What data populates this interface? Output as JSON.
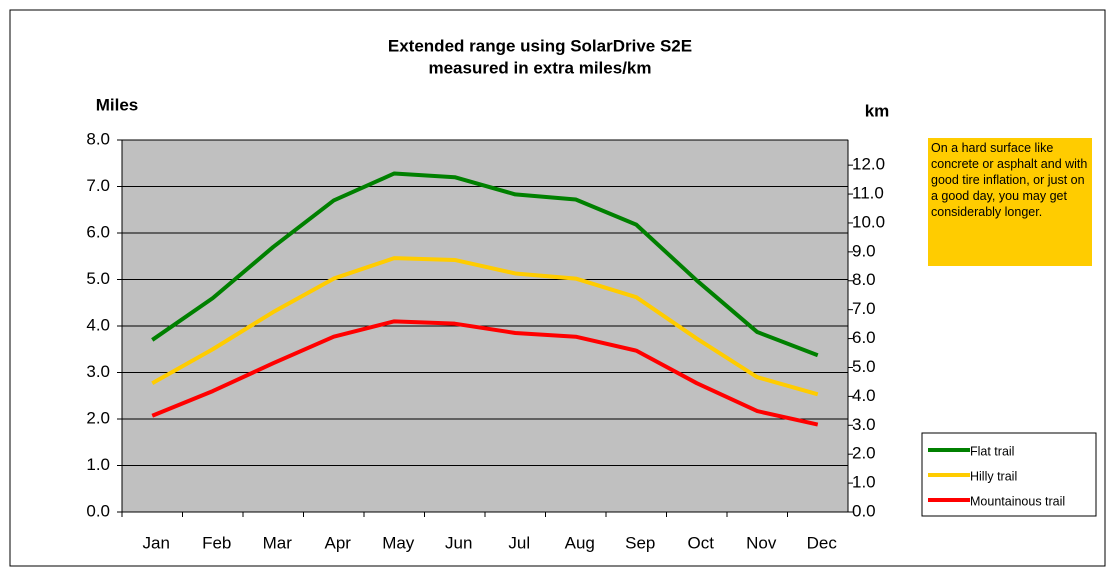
{
  "chart_data": {
    "type": "line",
    "title": [
      "Extended range using SolarDrive S2E",
      "measured in extra miles/km"
    ],
    "y_label": "Miles",
    "y2_label": "km",
    "categories": [
      "Jan",
      "Feb",
      "Mar",
      "Apr",
      "May",
      "Jun",
      "Jul",
      "Aug",
      "Sep",
      "Oct",
      "Nov",
      "Dec"
    ],
    "series": [
      {
        "name": "Flat trail",
        "color": "#008000",
        "values": [
          3.7,
          4.6,
          5.7,
          6.7,
          7.28,
          7.2,
          6.83,
          6.72,
          6.18,
          4.98,
          3.87,
          3.37
        ]
      },
      {
        "name": "Hilly trail",
        "color": "#ffcc00",
        "values": [
          2.77,
          3.5,
          4.3,
          5.02,
          5.46,
          5.42,
          5.13,
          5.02,
          4.62,
          3.73,
          2.9,
          2.53
        ]
      },
      {
        "name": "Mountainous trail",
        "color": "#ff0000",
        "values": [
          2.07,
          2.6,
          3.2,
          3.77,
          4.1,
          4.05,
          3.85,
          3.77,
          3.47,
          2.77,
          2.17,
          1.88
        ]
      }
    ],
    "ylim": [
      0,
      8
    ],
    "yticks": [
      {
        "value": 0,
        "label": "0.0"
      },
      {
        "value": 1,
        "label": "1.0"
      },
      {
        "value": 2,
        "label": "2.0"
      },
      {
        "value": 3,
        "label": "3.0"
      },
      {
        "value": 4,
        "label": "4.0"
      },
      {
        "value": 5,
        "label": "5.0"
      },
      {
        "value": 6,
        "label": "6.0"
      },
      {
        "value": 7,
        "label": "7.0"
      },
      {
        "value": 8,
        "label": "8.0"
      }
    ],
    "y2lim": [
      0,
      12.87
    ],
    "y2ticks": [
      {
        "value": 0,
        "label": "0.0"
      },
      {
        "value": 1,
        "label": "1.0"
      },
      {
        "value": 2,
        "label": "2.0"
      },
      {
        "value": 3,
        "label": "3.0"
      },
      {
        "value": 4,
        "label": "4.0"
      },
      {
        "value": 5,
        "label": "5.0"
      },
      {
        "value": 6,
        "label": "6.0"
      },
      {
        "value": 7,
        "label": "7.0"
      },
      {
        "value": 8,
        "label": "8.0"
      },
      {
        "value": 9,
        "label": "9.0"
      },
      {
        "value": 10,
        "label": "10.0"
      },
      {
        "value": 11,
        "label": "11.0"
      },
      {
        "value": 12,
        "label": "12.0"
      }
    ],
    "grid": true,
    "plot_background": "#c0c0c0",
    "legend": "right",
    "annotation": {
      "text": "On a hard surface like concrete or asphalt and with good tire inflation, or just on a good day, you may get considerably longer.",
      "background": "#ffcc00"
    }
  }
}
